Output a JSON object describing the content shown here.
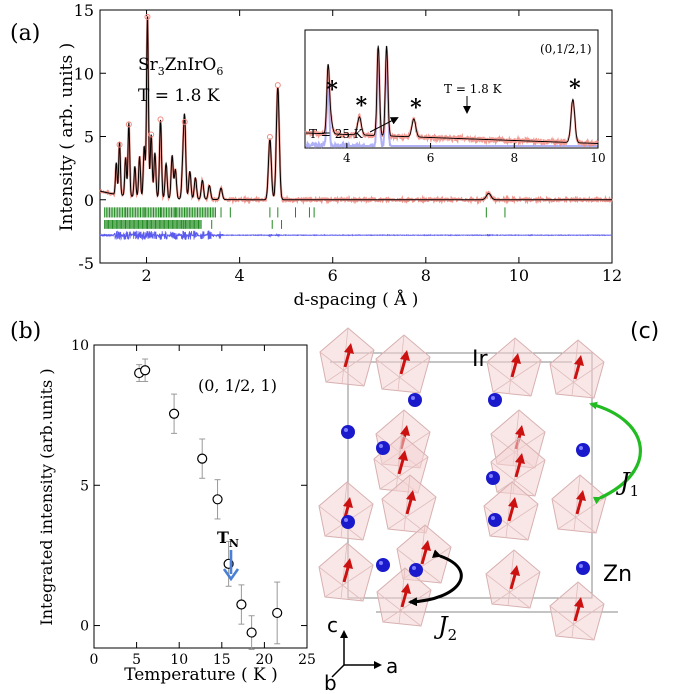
{
  "panel_labels": {
    "a": "(a)",
    "b": "(b)",
    "c": "(c)"
  },
  "colors": {
    "observed": "#f08a80",
    "calc": "#000000",
    "diff": "#5a5aee",
    "bragg": "#1f8a1f",
    "ir": "#cc1111",
    "zn": "#1a1acc",
    "j1": "#22bb22",
    "j2": "#000000",
    "tn_arrow": "#4a7fd6"
  },
  "chart_data": [
    {
      "type": "line",
      "panel": "(a)",
      "xlabel": "d-spacing ( Å )",
      "ylabel": "Intensity ( arb. units )",
      "xlim": [
        1,
        12
      ],
      "ylim": [
        -5,
        15
      ],
      "x_ticks": [
        "2",
        "4",
        "6",
        "8",
        "10",
        "12"
      ],
      "y_ticks": [
        "-5",
        "0",
        "5",
        "10",
        "15"
      ],
      "annotations": {
        "compound_prefix": "Sr",
        "compound_s1": "3",
        "compound_mid": "ZnIrO",
        "compound_s2": "6",
        "temperature": "T = 1.8 K"
      },
      "peaks": [
        [
          1.35,
          2.5
        ],
        [
          1.42,
          4.2
        ],
        [
          1.55,
          3.0
        ],
        [
          1.62,
          5.8
        ],
        [
          1.75,
          2.4
        ],
        [
          1.85,
          3.2
        ],
        [
          1.95,
          4.0
        ],
        [
          2.02,
          14.3
        ],
        [
          2.1,
          5.0
        ],
        [
          2.18,
          3.6
        ],
        [
          2.3,
          6.2
        ],
        [
          2.42,
          2.8
        ],
        [
          2.55,
          3.4
        ],
        [
          2.62,
          2.3
        ],
        [
          2.78,
          2.6
        ],
        [
          2.82,
          6.0
        ],
        [
          2.93,
          2.2
        ],
        [
          3.05,
          1.7
        ],
        [
          3.2,
          1.5
        ],
        [
          3.35,
          1.1
        ],
        [
          3.6,
          0.9
        ],
        [
          4.65,
          4.8
        ],
        [
          4.82,
          8.9
        ],
        [
          9.35,
          0.5
        ]
      ],
      "series": [
        {
          "name": "observed"
        },
        {
          "name": "calculated"
        },
        {
          "name": "difference"
        }
      ]
    },
    {
      "type": "line",
      "panel": "(a) inset",
      "xlim": [
        3,
        10
      ],
      "x_ticks": [
        "4",
        "6",
        "8",
        "10"
      ],
      "labels": {
        "t_low": "T = 1.8 K",
        "t_high": "T = 25 K",
        "reflection": "(0,1/2,1)",
        "star": "*"
      },
      "magnetic_peaks": [
        3.6,
        4.3,
        5.6,
        9.4
      ]
    },
    {
      "type": "scatter",
      "panel": "(b)",
      "xlabel": "Temperature ( K )",
      "ylabel": "Integrated intensity (arb.units )",
      "xlim": [
        0,
        25
      ],
      "ylim": [
        -0.8,
        10
      ],
      "x_ticks": [
        "0",
        "5",
        "10",
        "15",
        "20",
        "25"
      ],
      "y_ticks": [
        "0",
        "5",
        "10"
      ],
      "legend": "(0, 1/2, 1)",
      "tn_label": "T",
      "tn_sub": "N",
      "x": [
        5.3,
        6.0,
        9.4,
        12.7,
        14.5,
        15.8,
        17.3,
        18.5,
        21.5
      ],
      "y": [
        9.0,
        9.1,
        7.55,
        5.95,
        4.5,
        2.2,
        0.75,
        -0.25,
        0.45
      ],
      "err": [
        0.3,
        0.4,
        0.7,
        0.7,
        0.7,
        0.8,
        0.7,
        0.6,
        1.1
      ]
    }
  ],
  "structure": {
    "ir_label": "Ir",
    "zn_label": "Zn",
    "j1_label": "J",
    "j1_sub": "1",
    "j2_label": "J",
    "j2_sub": "2",
    "axis_c": "c",
    "axis_a": "a",
    "axis_b": "b"
  }
}
